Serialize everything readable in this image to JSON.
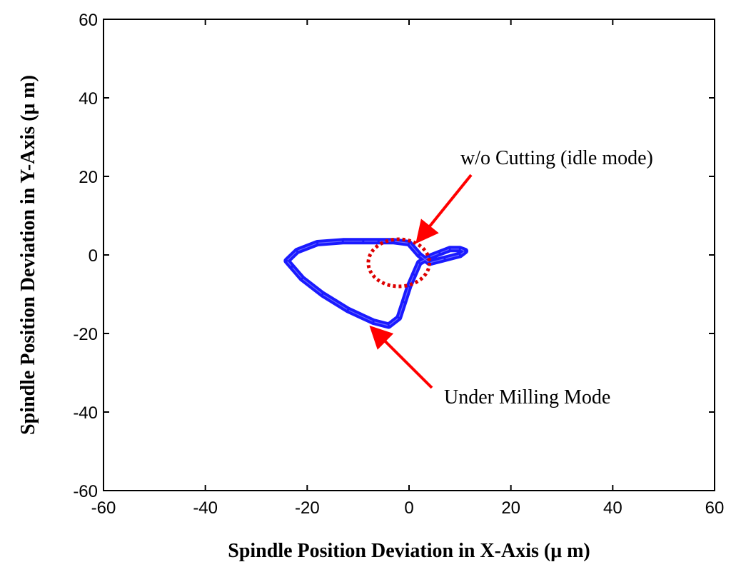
{
  "chart_data": {
    "type": "line",
    "title": "",
    "xlabel": "Spindle Position Deviation in X-Axis (μ m)",
    "ylabel": "Spindle Position Deviation in Y-Axis (μ m)",
    "xlim": [
      -60,
      60
    ],
    "ylim": [
      -60,
      60
    ],
    "xticks": [
      "-60",
      "-40",
      "-20",
      "0",
      "20",
      "40",
      "60"
    ],
    "yticks": [
      "60",
      "40",
      "20",
      "0",
      "-20",
      "-40",
      "-60"
    ],
    "grid": false,
    "series": [
      {
        "color": "#1a1aff",
        "x": [
          -23,
          -21,
          -17,
          -12,
          -7,
          -4,
          -2,
          -1,
          0,
          1,
          2,
          4,
          6,
          8,
          10,
          11,
          10,
          7,
          4,
          2,
          0,
          -3,
          -6,
          -9,
          -13,
          -18,
          -22,
          -24,
          -23
        ],
        "y": [
          -3,
          -6,
          -10,
          -14,
          -17,
          -18,
          -16,
          -12,
          -8,
          -5,
          -2,
          -0.5,
          0.5,
          1.5,
          1.5,
          1.0,
          0,
          -1,
          -2,
          0,
          3,
          3.5,
          3.5,
          3.5,
          3.5,
          3,
          1,
          -1.5,
          -3
        ]
      }
    ],
    "annotations": [
      {
        "text": "w/o Cutting (idle mode)",
        "arrow_to": [
          2,
          4
        ],
        "color": "#ff0000"
      },
      {
        "text": "Under Milling Mode",
        "arrow_to": [
          -7,
          -19
        ],
        "color": "#ff0000"
      }
    ],
    "highlight_circle": {
      "cx": -2,
      "cy": -2,
      "r": 6,
      "color": "#dd0000",
      "style": "dotted"
    }
  }
}
